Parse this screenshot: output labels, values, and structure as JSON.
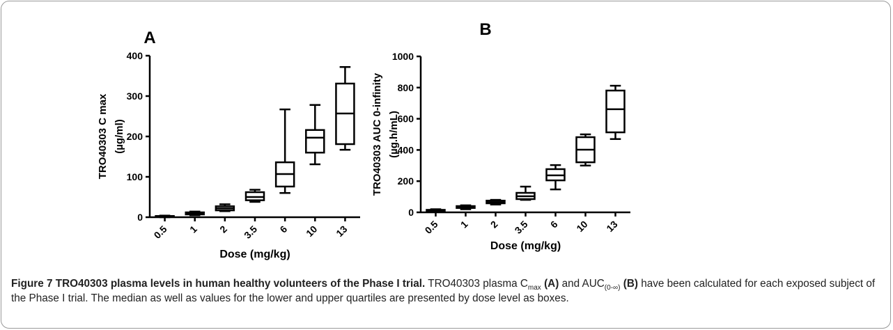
{
  "chart_data": [
    {
      "type": "box",
      "panel": "A",
      "y_label": [
        "TRO40303 C max",
        "(µg/ml)"
      ],
      "x_label": "Dose (mg/kg)",
      "categories": [
        "0.5",
        "1",
        "2",
        "3.5",
        "6",
        "10",
        "13"
      ],
      "boxes": [
        {
          "min": 0,
          "q1": 1,
          "median": 2,
          "q3": 3,
          "max": 4
        },
        {
          "min": 5,
          "q1": 7,
          "median": 9,
          "q3": 12,
          "max": 14
        },
        {
          "min": 15,
          "q1": 17,
          "median": 22,
          "q3": 27,
          "max": 32
        },
        {
          "min": 38,
          "q1": 42,
          "median": 50,
          "q3": 62,
          "max": 68
        },
        {
          "min": 60,
          "q1": 76,
          "median": 107,
          "q3": 136,
          "max": 267
        },
        {
          "min": 131,
          "q1": 160,
          "median": 197,
          "q3": 216,
          "max": 278
        },
        {
          "min": 167,
          "q1": 181,
          "median": 257,
          "q3": 331,
          "max": 372
        }
      ],
      "ylim": [
        0,
        400
      ],
      "yticks": [
        0,
        100,
        200,
        300,
        400
      ]
    },
    {
      "type": "box",
      "panel": "B",
      "y_label": [
        "TRO40303 AUC 0-infinity",
        "(µg.h/mL)"
      ],
      "x_label": "Dose (mg/kg)",
      "categories": [
        "0.5",
        "1",
        "2",
        "3.5",
        "6",
        "10",
        "13"
      ],
      "boxes": [
        {
          "min": 5,
          "q1": 8,
          "median": 12,
          "q3": 16,
          "max": 20
        },
        {
          "min": 20,
          "q1": 28,
          "median": 35,
          "q3": 40,
          "max": 45
        },
        {
          "min": 50,
          "q1": 58,
          "median": 65,
          "q3": 75,
          "max": 80
        },
        {
          "min": 80,
          "q1": 85,
          "median": 103,
          "q3": 125,
          "max": 165
        },
        {
          "min": 147,
          "q1": 205,
          "median": 237,
          "q3": 277,
          "max": 303
        },
        {
          "min": 300,
          "q1": 321,
          "median": 402,
          "q3": 482,
          "max": 500
        },
        {
          "min": 470,
          "q1": 513,
          "median": 661,
          "q3": 781,
          "max": 812
        }
      ],
      "ylim": [
        0,
        1000
      ],
      "yticks": [
        0,
        200,
        400,
        600,
        800,
        1000
      ]
    }
  ],
  "caption": {
    "label": "Figure 7",
    "title": "TRO40303 plasma levels in human healthy volunteers of the Phase I trial.",
    "body": [
      "TRO40303 plasma C",
      "max",
      "(A)",
      "and AUC",
      "(0-∞)",
      "(B)",
      "have been calculated for each exposed subject of the Phase I trial. The median as well as values for the lower and upper quartiles are presented by dose level as boxes."
    ]
  }
}
